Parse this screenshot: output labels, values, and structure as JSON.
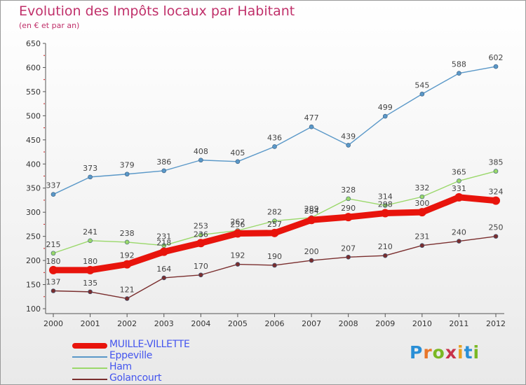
{
  "header": {
    "title": "Evolution des Impôts locaux par Habitant",
    "subtitle": "(en € et par an)"
  },
  "logo": {
    "text": "Proxiti",
    "colors": [
      "#2a8fd6",
      "#e8762a",
      "#7ab824",
      "#c8324a",
      "#e8a020",
      "#2a8fd6",
      "#7ab824"
    ]
  },
  "chart_data": {
    "type": "line",
    "x": [
      "2000",
      "2001",
      "2002",
      "2003",
      "2004",
      "2005",
      "2006",
      "2007",
      "2008",
      "2009",
      "2010",
      "2011",
      "2012"
    ],
    "ylim": [
      100,
      650
    ],
    "yticks": [
      100,
      150,
      200,
      250,
      300,
      350,
      400,
      450,
      500,
      550,
      600,
      650
    ],
    "grid": false,
    "legend_position": "bottom-left",
    "series": [
      {
        "name": "MUILLE-VILLETTE",
        "color": "#e8140c",
        "values": [
          180,
          180,
          192,
          218,
          236,
          256,
          257,
          284,
          290,
          298,
          300,
          331,
          324
        ],
        "labels": [
          "180",
          "180",
          "192",
          "218",
          "236",
          "256",
          "257",
          "284",
          "290",
          "298",
          "300",
          "331",
          "324"
        ]
      },
      {
        "name": "Eppeville",
        "color": "#5a98c8",
        "values": [
          337,
          373,
          379,
          386,
          408,
          405,
          436,
          477,
          439,
          499,
          545,
          588,
          602
        ],
        "labels": [
          "337",
          "373",
          "379",
          "386",
          "408",
          "405",
          "436",
          "477",
          "439",
          "499",
          "545",
          "588",
          "602"
        ]
      },
      {
        "name": "Ham",
        "color": "#9ad86a",
        "values": [
          215,
          241,
          238,
          231,
          253,
          262,
          282,
          289,
          328,
          314,
          332,
          365,
          385
        ],
        "labels": [
          "215",
          "241",
          "238",
          "231",
          "253",
          "262",
          "282",
          "289",
          "328",
          "314",
          "332",
          "365",
          "385"
        ]
      },
      {
        "name": "Golancourt",
        "color": "#7a2e2e",
        "values": [
          137,
          135,
          121,
          164,
          170,
          192,
          190,
          200,
          207,
          210,
          231,
          240,
          250
        ],
        "labels": [
          "137",
          "135",
          "121",
          "164",
          "170",
          "192",
          "190",
          "200",
          "207",
          "210",
          "231",
          "240",
          "250"
        ]
      }
    ]
  }
}
